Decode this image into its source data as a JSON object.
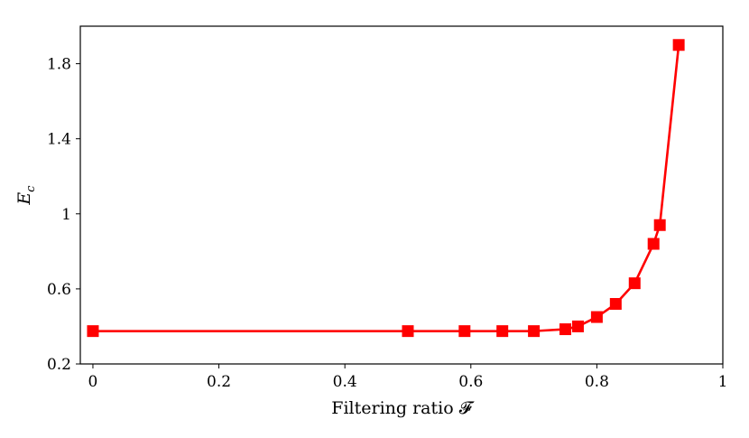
{
  "chart_data": {
    "type": "line",
    "xlabel": "Filtering ratio 𝓕",
    "ylabel": "E",
    "ylabel_subscript": "c",
    "xlim": [
      -0.02,
      1.0
    ],
    "ylim": [
      0.2,
      2.0
    ],
    "xticks": [
      0,
      0.2,
      0.4,
      0.6,
      0.8,
      1
    ],
    "xtick_labels": [
      "0",
      "0.2",
      "0.4",
      "0.6",
      "0.8",
      "1"
    ],
    "yticks": [
      0.2,
      0.6,
      1.0,
      1.4,
      1.8
    ],
    "ytick_labels": [
      "0.2",
      "0.6",
      "1",
      "1.4",
      "1.8"
    ],
    "grid": false,
    "legend": "none",
    "series": [
      {
        "marker": "square",
        "color": "#ff0000",
        "x": [
          0,
          0.5,
          0.59,
          0.65,
          0.7,
          0.75,
          0.77,
          0.8,
          0.83,
          0.86,
          0.89,
          0.9,
          0.93
        ],
        "y": [
          0.375,
          0.375,
          0.375,
          0.375,
          0.375,
          0.385,
          0.4,
          0.45,
          0.52,
          0.63,
          0.84,
          0.94,
          1.9
        ]
      }
    ]
  }
}
